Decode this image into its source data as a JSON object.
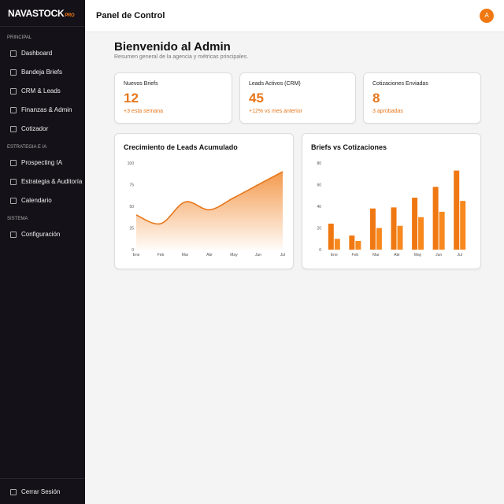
{
  "brand": {
    "name": "NAVASTOCK",
    "badge": "PRO"
  },
  "sidebar": {
    "sections": [
      {
        "title": "PRINCIPAL",
        "items": [
          "Dashboard",
          "Bandeja Briefs",
          "CRM & Leads",
          "Finanzas & Admin",
          "Cotizador"
        ]
      },
      {
        "title": "ESTRATEGIA E IA",
        "items": [
          "Prospecting IA",
          "Estrategia & Auditoría",
          "Calendario"
        ]
      },
      {
        "title": "SISTEMA",
        "items": [
          "Configuración"
        ]
      }
    ],
    "logout": "Cerrar Sesión"
  },
  "header": {
    "title": "Panel de Control",
    "avatar": "A"
  },
  "welcome": {
    "title": "Bienvenido al Admin",
    "subtitle": "Resumen general de la agencia y métricas principales."
  },
  "stats": [
    {
      "label": "Nuevos Briefs",
      "value": "12",
      "note": "+3 esta semana"
    },
    {
      "label": "Leads Activos (CRM)",
      "value": "45",
      "note": "+12% vs mes anterior"
    },
    {
      "label": "Cotizaciones Enviadas",
      "value": "8",
      "note": "3 aprobadas"
    }
  ],
  "chart_data": [
    {
      "type": "line",
      "title": "Crecimiento de Leads Acumulado",
      "categories": [
        "Ene",
        "Feb",
        "Mar",
        "Abr",
        "May",
        "Jun",
        "Jul"
      ],
      "values": [
        40,
        30,
        55,
        46,
        60,
        75,
        90
      ],
      "color": "#e8761a",
      "ylim": [
        0,
        100
      ],
      "yticks": [
        0,
        25,
        50,
        75,
        100
      ],
      "grid": false
    },
    {
      "type": "bar",
      "title": "Briefs vs Cotizaciones",
      "categories": [
        "Ene",
        "Feb",
        "Mar",
        "Abr",
        "May",
        "Jun",
        "Jul"
      ],
      "series": [
        {
          "color": "#f07812",
          "values": [
            24,
            13,
            38,
            39,
            48,
            58,
            73
          ]
        },
        {
          "color": "#f7891f",
          "values": [
            10,
            8,
            20,
            22,
            30,
            35,
            45
          ]
        }
      ],
      "ylim": [
        0,
        80
      ],
      "yticks": [
        0,
        20,
        40,
        60,
        80
      ],
      "grid": false
    }
  ]
}
